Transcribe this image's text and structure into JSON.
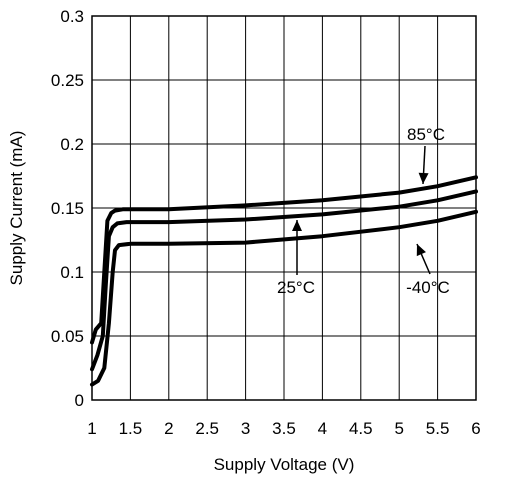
{
  "chart_data": {
    "type": "line",
    "title": "",
    "xlabel": "Supply Voltage  (V)",
    "ylabel": "Supply Current  (mA)",
    "xlim": [
      1,
      6
    ],
    "ylim": [
      0,
      0.3
    ],
    "x_ticks": [
      "1",
      "1.5",
      "2",
      "2.5",
      "3",
      "3.5",
      "4",
      "4.5",
      "5",
      "5.5",
      "6"
    ],
    "y_ticks": [
      "0",
      "0.05",
      "0.1",
      "0.15",
      "0.2",
      "0.25",
      "0.3"
    ],
    "grid": true,
    "series": [
      {
        "name": "85°C",
        "x": [
          1.0,
          1.05,
          1.12,
          1.16,
          1.2,
          1.25,
          1.3,
          1.4,
          2,
          3,
          4,
          5,
          5.5,
          6
        ],
        "y": [
          0.045,
          0.055,
          0.06,
          0.1,
          0.14,
          0.146,
          0.148,
          0.149,
          0.149,
          0.152,
          0.156,
          0.162,
          0.167,
          0.174
        ]
      },
      {
        "name": "25°C",
        "x": [
          1.0,
          1.07,
          1.14,
          1.18,
          1.22,
          1.27,
          1.33,
          1.45,
          2,
          3,
          4,
          5,
          5.5,
          6
        ],
        "y": [
          0.024,
          0.035,
          0.05,
          0.09,
          0.128,
          0.135,
          0.138,
          0.139,
          0.139,
          0.141,
          0.145,
          0.151,
          0.156,
          0.163
        ]
      },
      {
        "name": "-40°C",
        "x": [
          1.0,
          1.08,
          1.16,
          1.22,
          1.27,
          1.3,
          1.35,
          1.5,
          2,
          3,
          4,
          5,
          5.5,
          6
        ],
        "y": [
          0.012,
          0.015,
          0.025,
          0.06,
          0.1,
          0.117,
          0.121,
          0.122,
          0.122,
          0.123,
          0.128,
          0.135,
          0.14,
          0.147
        ]
      }
    ],
    "annotations": [
      {
        "text": "85°C",
        "series": "85°C"
      },
      {
        "text": "25°C",
        "series": "25°C"
      },
      {
        "text": "-40°C",
        "series": "-40°C"
      }
    ]
  }
}
